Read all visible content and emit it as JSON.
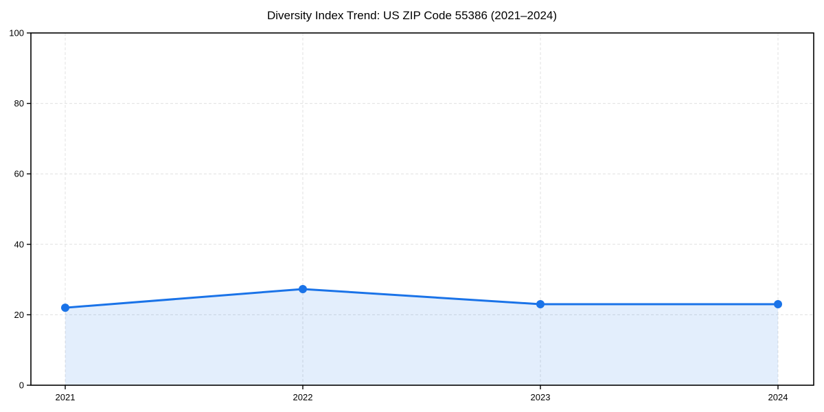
{
  "chart_data": {
    "type": "line",
    "area_fill": true,
    "title": "Diversity Index Trend: US ZIP Code 55386 (2021–2024)",
    "x": [
      "2021",
      "2022",
      "2023",
      "2024"
    ],
    "series": [
      {
        "name": "Diversity Index",
        "values": [
          22.0,
          27.3,
          23.0,
          23.0
        ]
      }
    ],
    "xlabel": "",
    "ylabel": "",
    "ylim": [
      0,
      100
    ],
    "yticks": [
      0,
      20,
      40,
      60,
      80,
      100
    ],
    "grid": "dashed-both-axes",
    "legend": "none",
    "marker": "circle",
    "colors": {
      "line": "#1a73e8",
      "marker": "#1a73e8",
      "fill": "#1a73e8",
      "fill_opacity": 0.12,
      "grid": "#e0e0e0",
      "axis": "#000000",
      "text": "#000000",
      "background": "#ffffff"
    }
  }
}
